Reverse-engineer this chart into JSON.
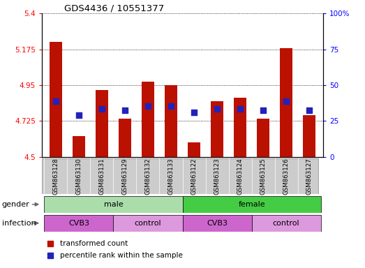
{
  "title": "GDS4436 / 10551377",
  "samples": [
    "GSM863128",
    "GSM863130",
    "GSM863131",
    "GSM863129",
    "GSM863132",
    "GSM863133",
    "GSM863122",
    "GSM863123",
    "GSM863124",
    "GSM863125",
    "GSM863126",
    "GSM863127"
  ],
  "bar_values": [
    5.22,
    4.63,
    4.92,
    4.74,
    4.97,
    4.95,
    4.59,
    4.85,
    4.87,
    4.74,
    5.18,
    4.76
  ],
  "blue_dot_values": [
    4.85,
    4.76,
    4.8,
    4.79,
    4.82,
    4.82,
    4.78,
    4.8,
    4.8,
    4.79,
    4.85,
    4.79
  ],
  "ylim_left": [
    4.5,
    5.4
  ],
  "ylim_right": [
    0,
    100
  ],
  "yticks_left": [
    4.5,
    4.725,
    4.95,
    5.175,
    5.4
  ],
  "yticks_right": [
    0,
    25,
    50,
    75,
    100
  ],
  "ytick_labels_left": [
    "4.5",
    "4.725",
    "4.95",
    "5.175",
    "5.4"
  ],
  "ytick_labels_right": [
    "0",
    "25",
    "50",
    "75",
    "100%"
  ],
  "bar_color": "#bb1100",
  "dot_color": "#2222bb",
  "bar_bottom": 4.5,
  "gender_groups": [
    {
      "label": "male",
      "start": 0,
      "end": 6,
      "color": "#aaddaa"
    },
    {
      "label": "female",
      "start": 6,
      "end": 12,
      "color": "#44cc44"
    }
  ],
  "infection_groups": [
    {
      "label": "CVB3",
      "start": 0,
      "end": 3,
      "color": "#cc66cc"
    },
    {
      "label": "control",
      "start": 3,
      "end": 6,
      "color": "#dd99dd"
    },
    {
      "label": "CVB3",
      "start": 6,
      "end": 9,
      "color": "#cc66cc"
    },
    {
      "label": "control",
      "start": 9,
      "end": 12,
      "color": "#dd99dd"
    }
  ],
  "legend_items": [
    {
      "label": "transformed count",
      "color": "#bb1100"
    },
    {
      "label": "percentile rank within the sample",
      "color": "#2222bb"
    }
  ],
  "grid_color": "black",
  "label_row1": "gender",
  "label_row2": "infection",
  "bar_width": 0.55,
  "dot_size": 35,
  "sample_bg_color": "#cccccc",
  "sample_border_color": "#888888"
}
